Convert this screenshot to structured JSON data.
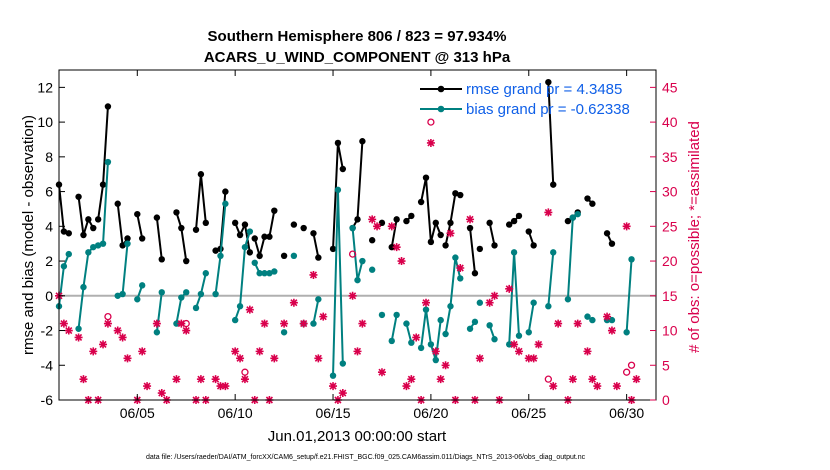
{
  "chart_data": {
    "type": "line",
    "title": "Southern Hemisphere 806 / 823 = 97.934%",
    "subtitle": "ACARS_U_WIND_COMPONENT @ 313 hPa",
    "xlabel": "Jun.01,2013 00:00:00 start",
    "ylabel": "rmse and bias (model - observation)",
    "ylabel_right": "# of obs: o=possible; *=assimilated",
    "ylim": [
      -6,
      13
    ],
    "ylim_right": [
      0,
      47.5
    ],
    "xlim": [
      1,
      31.5
    ],
    "x_ticks": [
      5,
      10,
      15,
      20,
      25,
      30
    ],
    "x_tick_labels": [
      "06/05",
      "06/10",
      "06/15",
      "06/20",
      "06/25",
      "06/30"
    ],
    "y_ticks": [
      -6,
      -4,
      -2,
      0,
      2,
      4,
      6,
      8,
      10,
      12
    ],
    "y_tick_labels": [
      "-6",
      "-4",
      "-2",
      "0",
      "2",
      "4",
      "6",
      "8",
      "10",
      "12"
    ],
    "y_ticks_right": [
      0,
      5,
      10,
      15,
      20,
      25,
      30,
      35,
      40,
      45
    ],
    "y_tick_labels_right": [
      "0",
      "5",
      "10",
      "15",
      "20",
      "25",
      "30",
      "35",
      "40",
      "45"
    ],
    "footnote": "data file: /Users/raeder/DAI/ATM_forcXX/CAM6_setup/f.e21.FHIST_BGC.f09_025.CAM6assim.011/Diags_NTrS_2013-06/obs_diag_output.nc",
    "legend": {
      "position": "top-right"
    },
    "series": [
      {
        "name": "rmse grand pr = 4.3485",
        "color": "#000000",
        "segments": [
          {
            "x": [
              1.0,
              1.25,
              1.5
            ],
            "y": [
              6.4,
              3.7,
              3.6
            ]
          },
          {
            "x": [
              2.0,
              2.25,
              2.5,
              2.75
            ],
            "y": [
              5.7,
              3.5,
              4.4,
              3.9
            ]
          },
          {
            "x": [
              3.0,
              3.25,
              3.5
            ],
            "y": [
              4.4,
              6.4,
              10.9
            ]
          },
          {
            "x": [
              4.0,
              4.25,
              4.5
            ],
            "y": [
              5.3,
              2.9,
              3.3
            ]
          },
          {
            "x": [
              5.0,
              5.25
            ],
            "y": [
              4.7,
              3.3
            ]
          },
          {
            "x": [
              6.0,
              6.25
            ],
            "y": [
              4.5,
              2.1
            ]
          },
          {
            "x": [
              7.0,
              7.25,
              7.5
            ],
            "y": [
              4.8,
              3.9,
              2.0
            ]
          },
          {
            "x": [
              8.0,
              8.25,
              8.5
            ],
            "y": [
              3.8,
              7.0,
              4.2
            ]
          },
          {
            "x": [
              9.0,
              9.25,
              9.5
            ],
            "y": [
              2.6,
              2.7,
              6.0
            ]
          },
          {
            "x": [
              10.0,
              10.25,
              10.5,
              10.75
            ],
            "y": [
              4.2,
              3.5,
              4.1,
              2.5
            ]
          },
          {
            "x": [
              11.0,
              11.25,
              11.5
            ],
            "y": [
              3.3,
              2.3,
              3.4
            ]
          },
          {
            "x": [
              11.75,
              12.0
            ],
            "y": [
              3.4,
              4.9
            ]
          },
          {
            "x": [
              12.5
            ],
            "y": [
              2.3
            ]
          },
          {
            "x": [
              13.0
            ],
            "y": [
              4.1
            ]
          },
          {
            "x": [
              13.5
            ],
            "y": [
              3.9
            ]
          },
          {
            "x": [
              14.0,
              14.25
            ],
            "y": [
              3.6,
              2.2
            ]
          },
          {
            "x": [
              15.0,
              15.25,
              15.5
            ],
            "y": [
              2.7,
              8.8,
              7.3
            ]
          },
          {
            "x": [
              16.0,
              16.25,
              16.5
            ],
            "y": [
              3.9,
              4.4,
              8.9
            ]
          },
          {
            "x": [
              17.0
            ],
            "y": [
              3.2
            ]
          },
          {
            "x": [
              17.5
            ],
            "y": [
              4.2
            ]
          },
          {
            "x": [
              18.0,
              18.25
            ],
            "y": [
              2.8,
              4.4
            ]
          },
          {
            "x": [
              18.75,
              19.0
            ],
            "y": [
              4.3,
              4.6
            ]
          },
          {
            "x": [
              19.5,
              19.75,
              20.0,
              20.25,
              20.5
            ],
            "y": [
              5.4,
              6.8,
              3.1,
              4.2,
              3.5
            ]
          },
          {
            "x": [
              20.75,
              21.0,
              21.25,
              21.5
            ],
            "y": [
              2.9,
              4.2,
              5.9,
              5.8
            ]
          },
          {
            "x": [
              22.0,
              22.25
            ],
            "y": [
              3.9,
              1.3
            ]
          },
          {
            "x": [
              22.5
            ],
            "y": [
              2.7
            ]
          },
          {
            "x": [
              23.0,
              23.25
            ],
            "y": [
              4.2,
              2.9
            ]
          },
          {
            "x": [
              24.0,
              24.25,
              24.5
            ],
            "y": [
              4.1,
              4.3,
              4.6
            ]
          },
          {
            "x": [
              25.0,
              25.25
            ],
            "y": [
              3.7,
              2.9
            ]
          },
          {
            "x": [
              26.0,
              26.25
            ],
            "y": [
              12.3,
              6.4
            ]
          },
          {
            "x": [
              27.0,
              27.25,
              27.5
            ],
            "y": [
              4.3,
              4.5,
              4.8
            ]
          },
          {
            "x": [
              28.0,
              28.25
            ],
            "y": [
              5.6,
              5.3
            ]
          },
          {
            "x": [
              29.0,
              29.25
            ],
            "y": [
              3.6,
              3.0
            ]
          }
        ]
      },
      {
        "name": "bias grand pr = -0.62338",
        "color": "#008080",
        "segments": [
          {
            "x": [
              1.0,
              1.25,
              1.5
            ],
            "y": [
              -0.6,
              1.7,
              2.4
            ]
          },
          {
            "x": [
              2.0,
              2.25,
              2.5,
              2.75
            ],
            "y": [
              -1.9,
              0.5,
              2.5,
              2.8
            ]
          },
          {
            "x": [
              3.0,
              3.25,
              3.5
            ],
            "y": [
              2.9,
              3.0,
              7.7
            ]
          },
          {
            "x": [
              4.0,
              4.25,
              4.5
            ],
            "y": [
              0.0,
              0.1,
              3.0
            ]
          },
          {
            "x": [
              5.0,
              5.25
            ],
            "y": [
              -0.2,
              0.6
            ]
          },
          {
            "x": [
              6.0,
              6.25
            ],
            "y": [
              -2.1,
              0.2
            ]
          },
          {
            "x": [
              7.0,
              7.25,
              7.5
            ],
            "y": [
              -1.6,
              -0.1,
              0.2
            ]
          },
          {
            "x": [
              8.0,
              8.25,
              8.5
            ],
            "y": [
              -0.7,
              0.1,
              1.3
            ]
          },
          {
            "x": [
              9.0,
              9.25,
              9.5
            ],
            "y": [
              0.1,
              2.3,
              5.3
            ]
          },
          {
            "x": [
              10.0,
              10.25,
              10.5,
              10.75
            ],
            "y": [
              -1.4,
              -0.6,
              2.8,
              3.7
            ]
          },
          {
            "x": [
              11.0,
              11.25,
              11.5
            ],
            "y": [
              1.9,
              1.3,
              1.3
            ]
          },
          {
            "x": [
              11.75,
              12.0
            ],
            "y": [
              1.3,
              1.4
            ]
          },
          {
            "x": [
              12.5
            ],
            "y": [
              -2.1
            ]
          },
          {
            "x": [
              13.0
            ],
            "y": [
              2.3
            ]
          },
          {
            "x": [
              13.5
            ],
            "y": [
              -1.6
            ]
          },
          {
            "x": [
              14.0,
              14.25
            ],
            "y": [
              -1.6,
              -0.2
            ]
          },
          {
            "x": [
              15.0,
              15.25,
              15.5
            ],
            "y": [
              -4.6,
              6.1,
              -3.9
            ]
          },
          {
            "x": [
              16.0,
              16.25,
              16.5
            ],
            "y": [
              3.9,
              0.9,
              2.0
            ]
          },
          {
            "x": [
              17.0
            ],
            "y": [
              1.5
            ]
          },
          {
            "x": [
              17.5
            ],
            "y": [
              -1.1
            ]
          },
          {
            "x": [
              18.0,
              18.25
            ],
            "y": [
              -2.6,
              -1.1
            ]
          },
          {
            "x": [
              18.75,
              19.0
            ],
            "y": [
              -1.6,
              -2.7
            ]
          },
          {
            "x": [
              19.5,
              19.75,
              20.0,
              20.25,
              20.5
            ],
            "y": [
              -3.0,
              -0.8,
              -2.8,
              -3.7,
              -1.4
            ]
          },
          {
            "x": [
              20.75,
              21.0,
              21.25,
              21.5
            ],
            "y": [
              -2.2,
              -0.6,
              2.2,
              1.0
            ]
          },
          {
            "x": [
              22.0,
              22.25
            ],
            "y": [
              -1.9,
              -1.5
            ]
          },
          {
            "x": [
              22.5
            ],
            "y": [
              -0.4
            ]
          },
          {
            "x": [
              23.0,
              23.25
            ],
            "y": [
              -1.7,
              -2.5
            ]
          },
          {
            "x": [
              24.0,
              24.25,
              24.5
            ],
            "y": [
              -2.8,
              2.5,
              -2.3
            ]
          },
          {
            "x": [
              25.0,
              25.25
            ],
            "y": [
              -2.1,
              -0.4
            ]
          },
          {
            "x": [
              26.0,
              26.25
            ],
            "y": [
              -0.6,
              2.5
            ]
          },
          {
            "x": [
              27.0,
              27.25,
              27.5
            ],
            "y": [
              -0.2,
              4.5,
              4.7
            ]
          },
          {
            "x": [
              28.0,
              28.25
            ],
            "y": [
              -1.2,
              -1.4
            ]
          },
          {
            "x": [
              29.0,
              29.25
            ],
            "y": [
              -1.4,
              -1.4
            ]
          },
          {
            "x": [
              30.0,
              30.25
            ],
            "y": [
              -2.1,
              2.1
            ]
          }
        ]
      },
      {
        "name": "# of obs possible",
        "color": "#d9004c",
        "axis": "right",
        "marker": "o",
        "x": [
          3.5,
          7.5,
          10.5,
          16.0,
          20.0,
          26.0,
          30.0,
          30.25
        ],
        "y": [
          12,
          11,
          4,
          21,
          40,
          3,
          4,
          5
        ]
      },
      {
        "name": "# of obs assimilated",
        "color": "#d9004c",
        "axis": "right",
        "marker": "*",
        "x": [
          1.0,
          1.25,
          1.5,
          2.0,
          2.25,
          2.5,
          2.75,
          3.0,
          3.25,
          3.5,
          4.0,
          4.25,
          4.5,
          5.0,
          5.25,
          5.5,
          6.0,
          6.25,
          6.5,
          7.0,
          7.25,
          7.5,
          8.0,
          8.25,
          8.5,
          9.0,
          9.25,
          9.5,
          10.0,
          10.25,
          10.5,
          10.75,
          11.0,
          11.25,
          11.5,
          11.75,
          12.0,
          12.5,
          13.0,
          13.5,
          14.0,
          14.25,
          14.5,
          15.0,
          15.25,
          15.5,
          16.0,
          16.25,
          16.5,
          17.0,
          17.25,
          17.5,
          18.0,
          18.25,
          18.5,
          18.75,
          19.0,
          19.25,
          19.5,
          19.75,
          20.0,
          20.25,
          20.5,
          20.75,
          21.0,
          21.25,
          21.5,
          22.0,
          22.25,
          22.5,
          23.0,
          23.25,
          23.5,
          24.0,
          24.25,
          24.5,
          25.0,
          25.25,
          25.5,
          26.0,
          26.25,
          26.5,
          27.0,
          27.25,
          27.5,
          28.0,
          28.25,
          28.5,
          29.0,
          29.25,
          29.5,
          30.0,
          30.25,
          30.5
        ],
        "y": [
          15,
          11,
          10,
          9,
          3,
          0,
          7,
          0,
          8,
          11,
          10,
          9,
          6,
          0,
          7,
          2,
          11,
          1,
          0,
          3,
          11,
          10,
          0,
          3,
          0,
          3,
          2,
          2,
          7,
          6,
          3,
          13,
          0,
          7,
          11,
          0,
          6,
          11,
          14,
          11,
          18,
          6,
          12,
          2,
          0,
          1,
          15,
          7,
          11,
          26,
          25,
          4,
          25,
          22,
          20,
          2,
          3,
          9,
          0,
          14,
          37,
          7,
          3,
          5,
          24,
          0,
          19,
          26,
          0,
          6,
          14,
          15,
          0,
          16,
          8,
          7,
          6,
          6,
          8,
          27,
          2,
          11,
          0,
          3,
          11,
          7,
          3,
          2,
          12,
          10,
          2,
          25,
          0,
          3
        ]
      }
    ]
  }
}
